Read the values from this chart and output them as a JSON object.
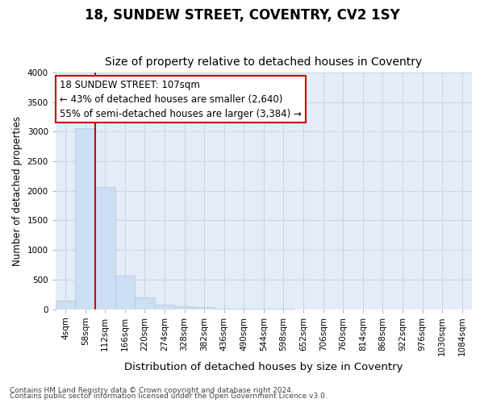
{
  "title": "18, SUNDEW STREET, COVENTRY, CV2 1SY",
  "subtitle": "Size of property relative to detached houses in Coventry",
  "xlabel": "Distribution of detached houses by size in Coventry",
  "ylabel": "Number of detached properties",
  "bar_labels": [
    "4sqm",
    "58sqm",
    "112sqm",
    "166sqm",
    "220sqm",
    "274sqm",
    "328sqm",
    "382sqm",
    "436sqm",
    "490sqm",
    "544sqm",
    "598sqm",
    "652sqm",
    "706sqm",
    "760sqm",
    "814sqm",
    "868sqm",
    "922sqm",
    "976sqm",
    "1030sqm",
    "1084sqm"
  ],
  "bar_values": [
    150,
    3060,
    2070,
    560,
    200,
    75,
    50,
    30,
    10,
    5,
    2,
    1,
    0,
    0,
    0,
    0,
    0,
    0,
    0,
    0,
    0
  ],
  "bar_color": "#ccdff5",
  "bar_edge_color": "#b0c8e0",
  "vline_x_idx": 2,
  "vline_color": "#cc0000",
  "annotation_line1": "18 SUNDEW STREET: 107sqm",
  "annotation_line2": "← 43% of detached houses are smaller (2,640)",
  "annotation_line3": "55% of semi-detached houses are larger (3,384) →",
  "annotation_box_color": "#ffffff",
  "annotation_box_edge": "#cc0000",
  "ylim": [
    0,
    4000
  ],
  "yticks": [
    0,
    500,
    1000,
    1500,
    2000,
    2500,
    3000,
    3500,
    4000
  ],
  "grid_color": "#c8d4e8",
  "bg_color": "#e4ecf7",
  "footer1": "Contains HM Land Registry data © Crown copyright and database right 2024.",
  "footer2": "Contains public sector information licensed under the Open Government Licence v3.0.",
  "title_fontsize": 12,
  "subtitle_fontsize": 10,
  "tick_fontsize": 7.5,
  "ylabel_fontsize": 8.5,
  "xlabel_fontsize": 9.5,
  "footer_fontsize": 6.5,
  "annotation_fontsize": 8.5
}
